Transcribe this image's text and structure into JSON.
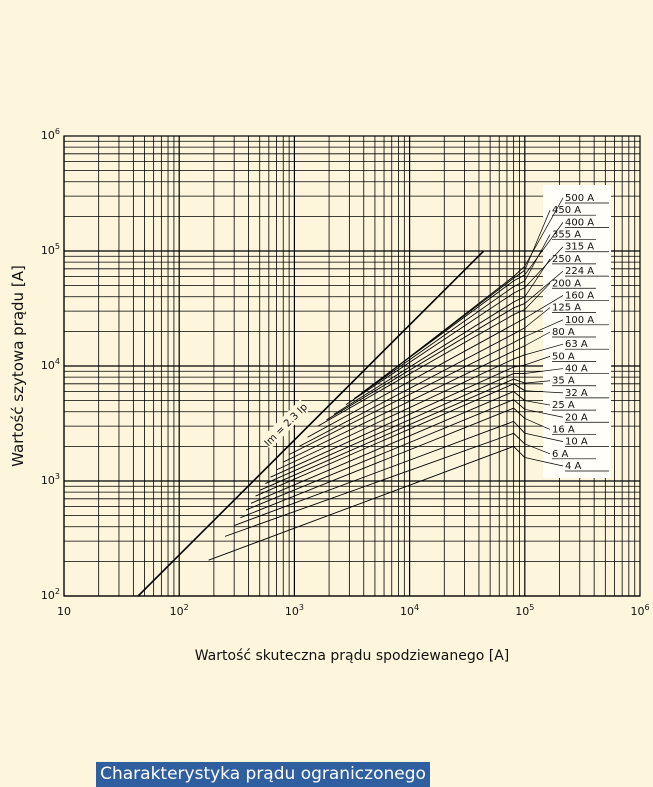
{
  "banner": {
    "text": "Charakterystyka prądu ograniczonego"
  },
  "colors": {
    "background": "#fdf6dc",
    "banner": "#2f5f9e",
    "grid": "#000000",
    "legend_box": "#ffffff"
  },
  "chart_data": {
    "type": "line",
    "title": "",
    "xlabel": "Wartość skuteczna prądu spodziewanego [A]",
    "ylabel": "Wartość szytowa prądu [A]",
    "x_scale": "log",
    "y_scale": "log",
    "xlim": [
      10,
      1000000
    ],
    "ylim": [
      100,
      1000000
    ],
    "grid": true,
    "x_ticks": [
      {
        "base": "10",
        "exp": ""
      },
      {
        "base": "10",
        "exp": "2"
      },
      {
        "base": "10",
        "exp": "3"
      },
      {
        "base": "10",
        "exp": "4"
      },
      {
        "base": "10",
        "exp": "5"
      },
      {
        "base": "10",
        "exp": "6"
      }
    ],
    "y_ticks": [
      {
        "base": "10",
        "exp": "2"
      },
      {
        "base": "10",
        "exp": "3"
      },
      {
        "base": "10",
        "exp": "4"
      },
      {
        "base": "10",
        "exp": "5"
      },
      {
        "base": "10",
        "exp": "6"
      }
    ],
    "reference_line": {
      "label": "Im = 2.3 Ip",
      "x": [
        44,
        44000
      ],
      "y": [
        100,
        100000
      ]
    },
    "series": [
      {
        "name": "4 A",
        "x": [
          180,
          80000,
          100000
        ],
        "y": [
          205,
          2000,
          1600
        ]
      },
      {
        "name": "6 A",
        "x": [
          250,
          80000,
          100000
        ],
        "y": [
          330,
          2600,
          2100
        ]
      },
      {
        "name": "10 A",
        "x": [
          300,
          80000,
          100000
        ],
        "y": [
          410,
          3300,
          2600
        ]
      },
      {
        "name": "16 A",
        "x": [
          340,
          80000,
          100000
        ],
        "y": [
          480,
          4300,
          3500
        ]
      },
      {
        "name": "20 A",
        "x": [
          380,
          80000,
          100000
        ],
        "y": [
          560,
          5100,
          4200
        ]
      },
      {
        "name": "25 A",
        "x": [
          420,
          80000,
          100000
        ],
        "y": [
          640,
          6000,
          5000
        ]
      },
      {
        "name": "32 A",
        "x": [
          460,
          80000,
          100000
        ],
        "y": [
          740,
          7000,
          6100
        ]
      },
      {
        "name": "35 A",
        "x": [
          500,
          80000,
          100000
        ],
        "y": [
          830,
          7700,
          7100
        ]
      },
      {
        "name": "40 A",
        "x": [
          560,
          80000,
          100000
        ],
        "y": [
          950,
          8600,
          8600
        ]
      },
      {
        "name": "50 A",
        "x": [
          620,
          80000,
          100000
        ],
        "y": [
          1080,
          9800,
          10200
        ]
      },
      {
        "name": "63 A",
        "x": [
          700,
          80000,
          100000
        ],
        "y": [
          1250,
          11500,
          12500
        ]
      },
      {
        "name": "80 A",
        "x": [
          800,
          80000,
          100000
        ],
        "y": [
          1460,
          13500,
          15000
        ]
      },
      {
        "name": "100 A",
        "x": [
          900,
          80000,
          100000
        ],
        "y": [
          1700,
          16000,
          18000
        ]
      },
      {
        "name": "125 A",
        "x": [
          1100,
          80000,
          100000
        ],
        "y": [
          2000,
          19000,
          21500
        ]
      },
      {
        "name": "160 A",
        "x": [
          1300,
          80000,
          100000
        ],
        "y": [
          2400,
          23000,
          26000
        ]
      },
      {
        "name": "200 A",
        "x": [
          1600,
          80000,
          100000
        ],
        "y": [
          3000,
          28000,
          31000
        ]
      },
      {
        "name": "224 A",
        "x": [
          1900,
          80000,
          100000
        ],
        "y": [
          3400,
          32000,
          35000
        ]
      },
      {
        "name": "250 A",
        "x": [
          2200,
          80000,
          100000
        ],
        "y": [
          3800,
          36000,
          40000
        ]
      },
      {
        "name": "315 A",
        "x": [
          2800,
          80000,
          100000
        ],
        "y": [
          4600,
          43000,
          48000
        ]
      },
      {
        "name": "355 A",
        "x": [
          3300,
          80000,
          100000
        ],
        "y": [
          5200,
          49000,
          55000
        ]
      },
      {
        "name": "400 A",
        "x": [
          3800,
          80000,
          100000
        ],
        "y": [
          5800,
          55000,
          62000
        ]
      },
      {
        "name": "450 A",
        "x": [
          4300,
          80000,
          100000
        ],
        "y": [
          6300,
          58000,
          68000
        ]
      },
      {
        "name": "500 A",
        "x": [
          5000,
          80000,
          100000
        ],
        "y": [
          7000,
          60000,
          74000
        ]
      }
    ]
  }
}
